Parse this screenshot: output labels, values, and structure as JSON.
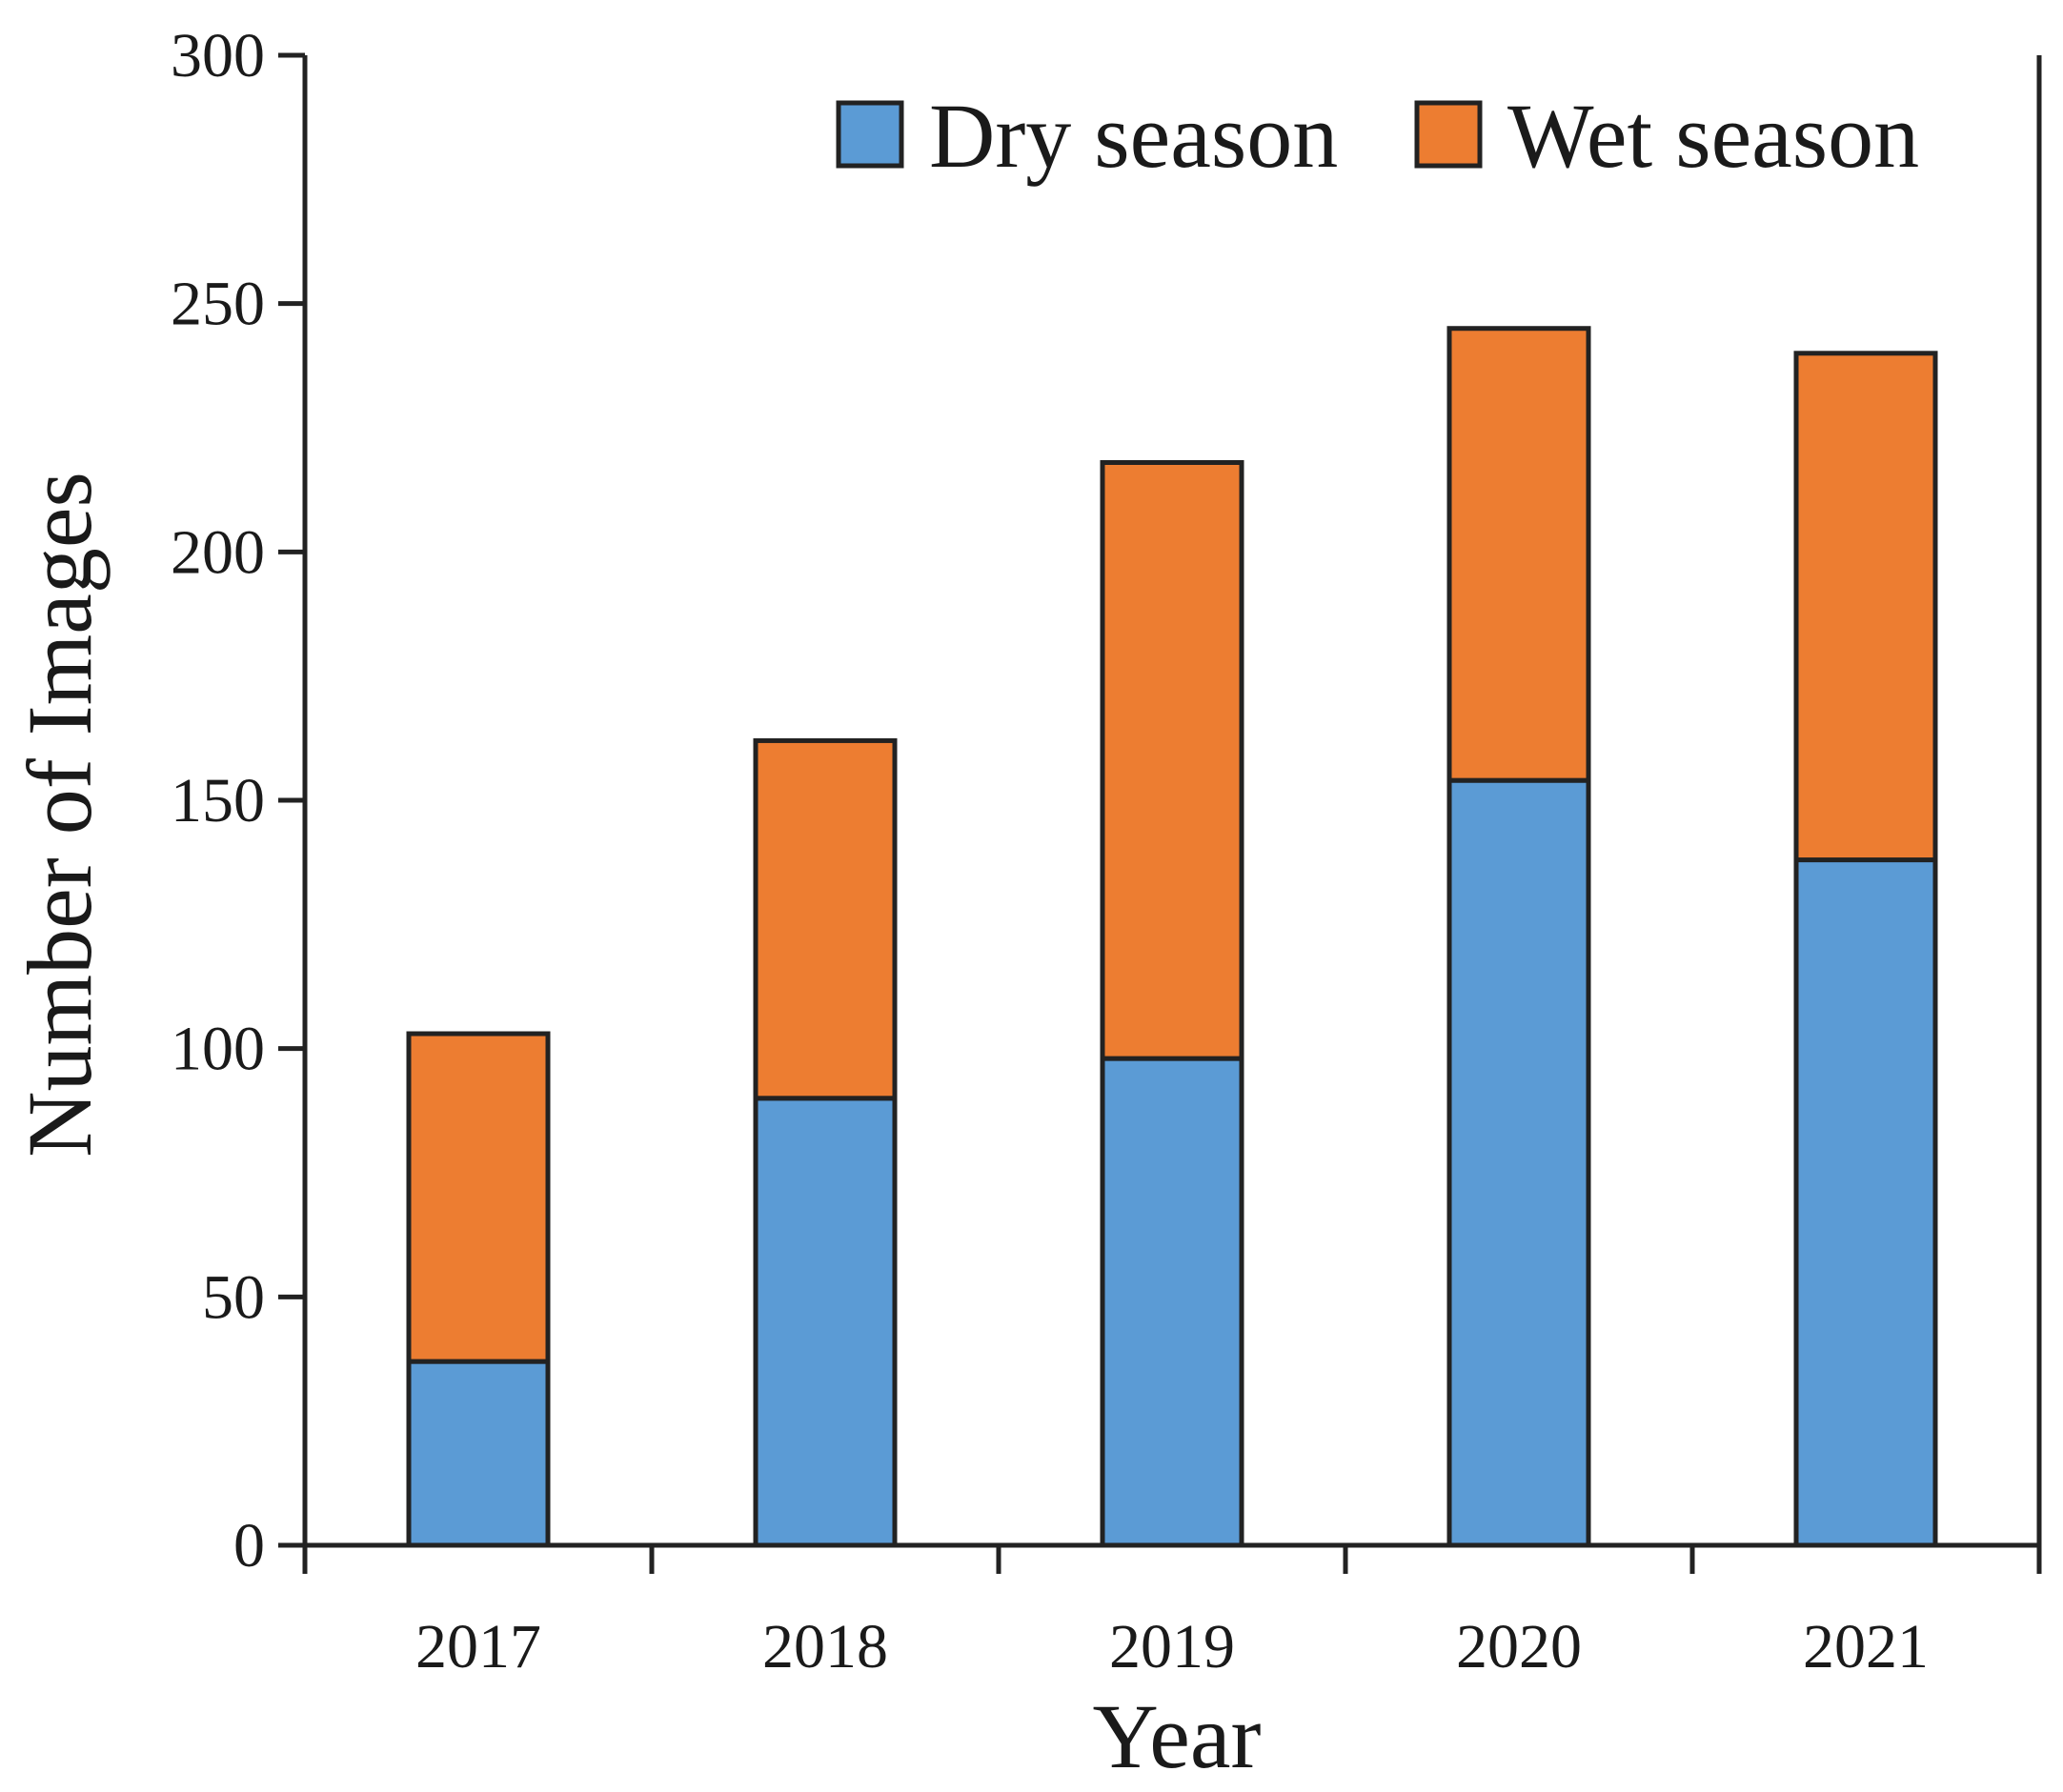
{
  "chart_data": {
    "type": "bar",
    "stacked": true,
    "title": "",
    "xlabel": "Year",
    "ylabel": "Number of Images",
    "categories": [
      "2017",
      "2018",
      "2019",
      "2020",
      "2021"
    ],
    "series": [
      {
        "name": "Dry season",
        "color": "#5B9BD5",
        "values": [
          37,
          90,
          98,
          154,
          138
        ]
      },
      {
        "name": "Wet season",
        "color": "#ED7D31",
        "values": [
          66,
          72,
          120,
          91,
          102
        ]
      }
    ],
    "ylim": [
      0,
      300
    ],
    "yticks": [
      "0",
      "50",
      "100",
      "150",
      "200",
      "250",
      "300"
    ],
    "legend_position": "top-right",
    "grid": false
  }
}
